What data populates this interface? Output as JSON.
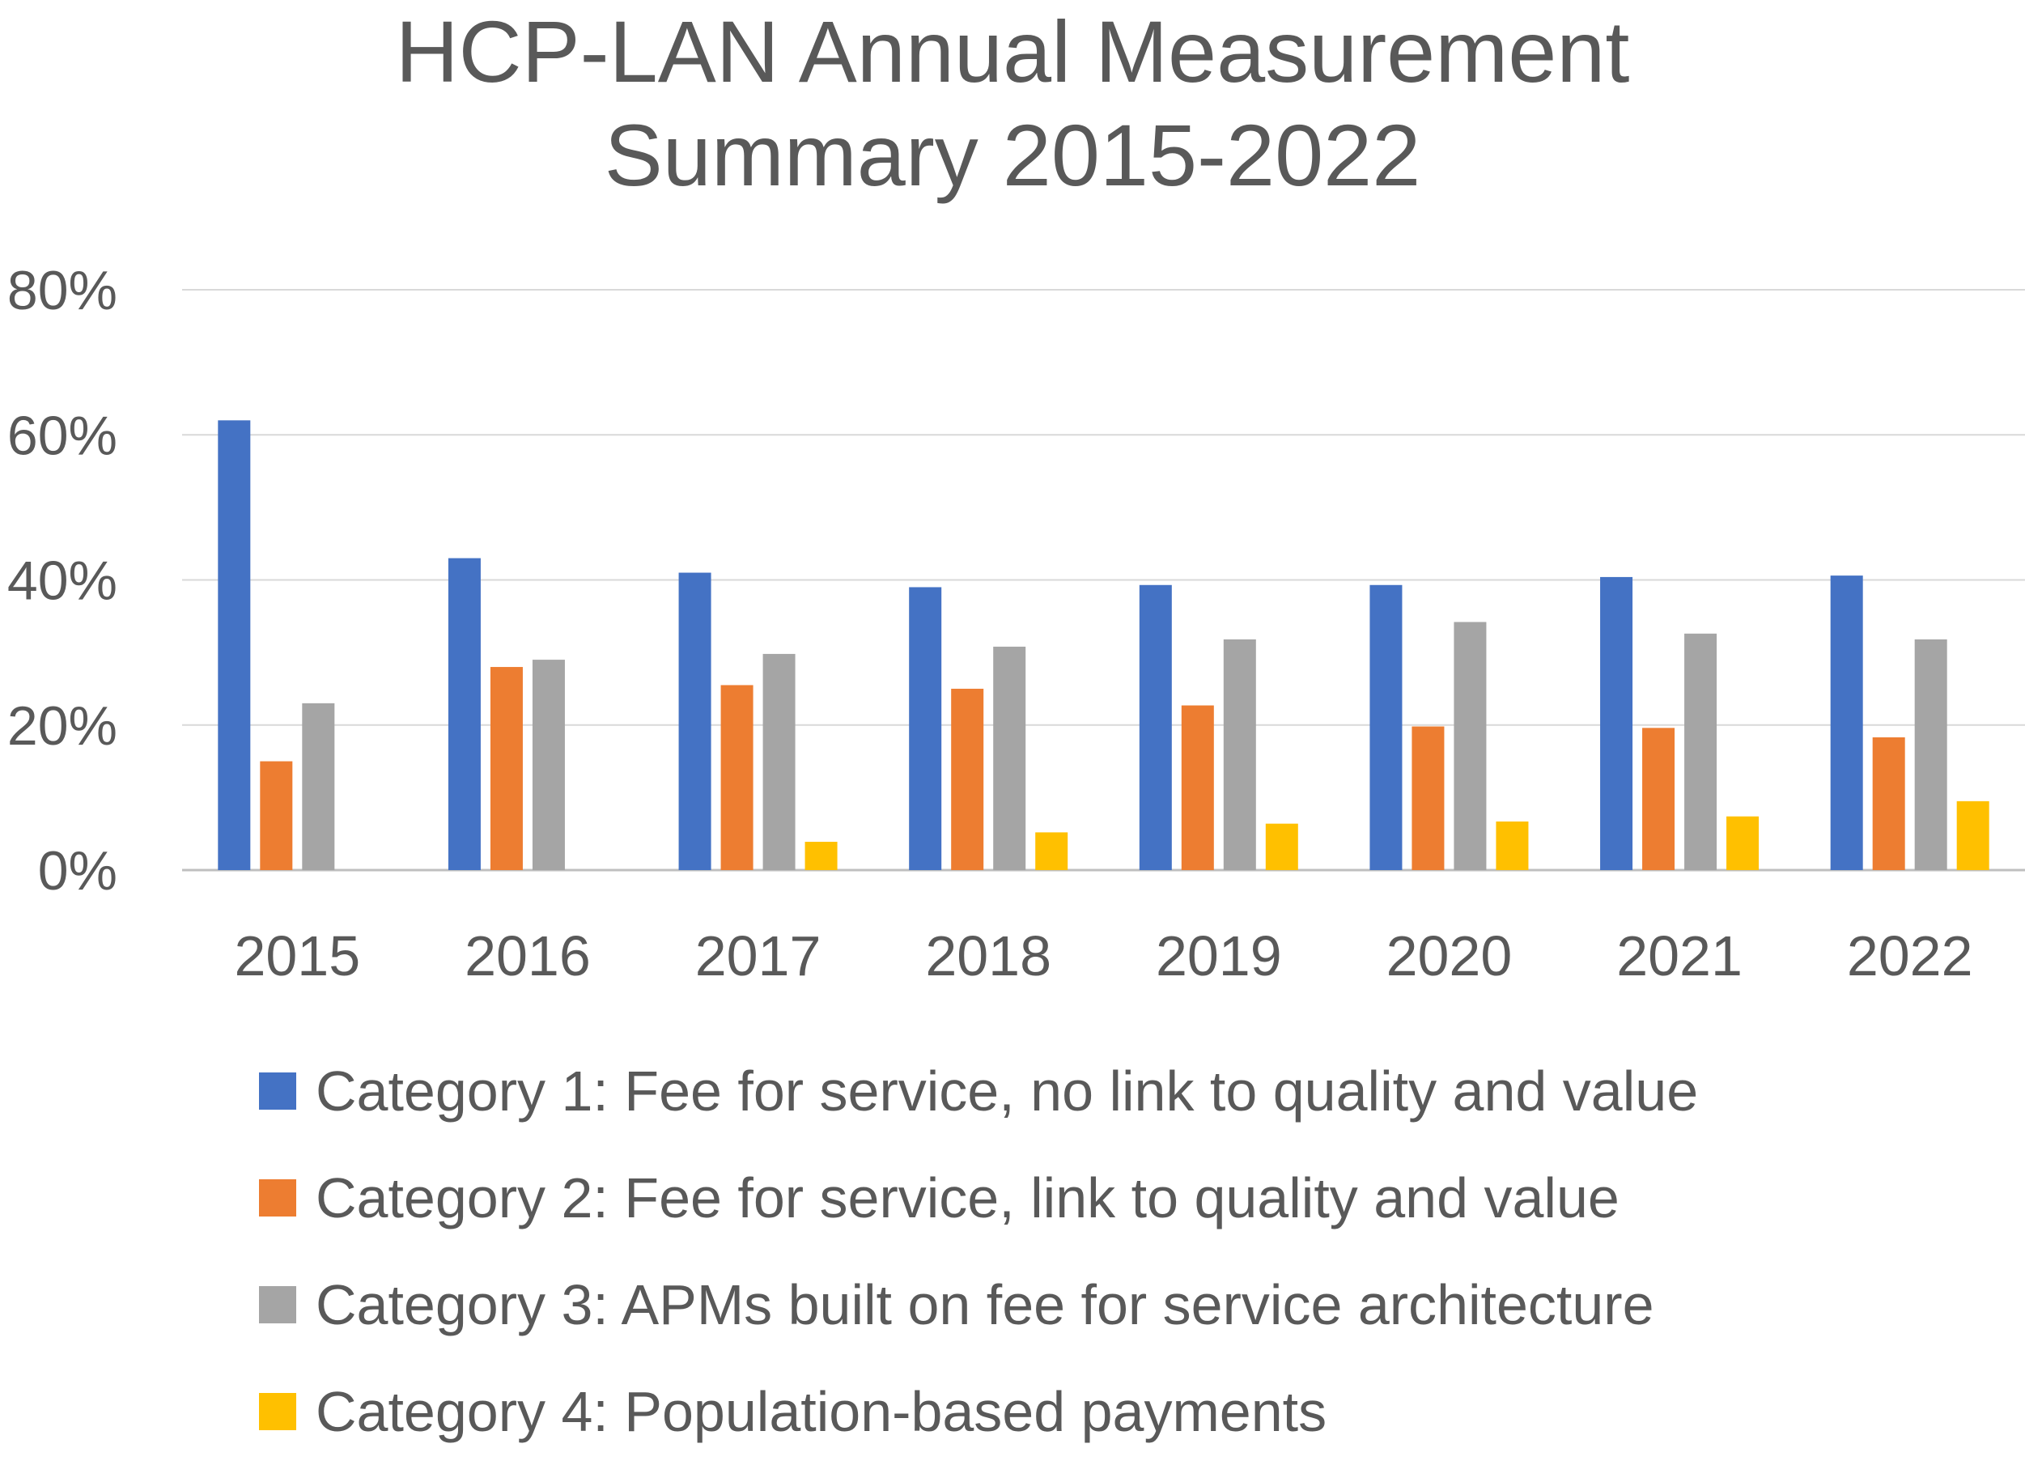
{
  "chart_data": {
    "type": "bar",
    "title_lines": [
      "HCP-LAN Annual Measurement",
      "Summary 2015-2022"
    ],
    "categories": [
      "2015",
      "2016",
      "2017",
      "2018",
      "2019",
      "2020",
      "2021",
      "2022"
    ],
    "series": [
      {
        "name": "Category 1: Fee for service, no link to quality and value",
        "color": "#4472C4",
        "values": [
          62,
          43,
          41,
          39,
          39.3,
          39.3,
          40.4,
          40.6
        ]
      },
      {
        "name": "Category 2: Fee for service, link to quality and value",
        "color": "#ED7D31",
        "values": [
          15,
          28,
          25.5,
          25,
          22.7,
          19.8,
          19.6,
          18.3
        ]
      },
      {
        "name": "Category 3: APMs built on fee for service architecture",
        "color": "#A5A5A5",
        "values": [
          23,
          29,
          29.8,
          30.8,
          31.8,
          34.2,
          32.6,
          31.8
        ]
      },
      {
        "name": "Category 4: Population-based payments",
        "color": "#FFC000",
        "values": [
          0,
          0,
          3.9,
          5.2,
          6.4,
          6.7,
          7.4,
          9.5
        ]
      }
    ],
    "y_ticks": [
      "0%",
      "20%",
      "40%",
      "60%",
      "80%"
    ],
    "ylim": [
      0,
      80
    ],
    "grid": true,
    "legend_position": "bottom"
  }
}
